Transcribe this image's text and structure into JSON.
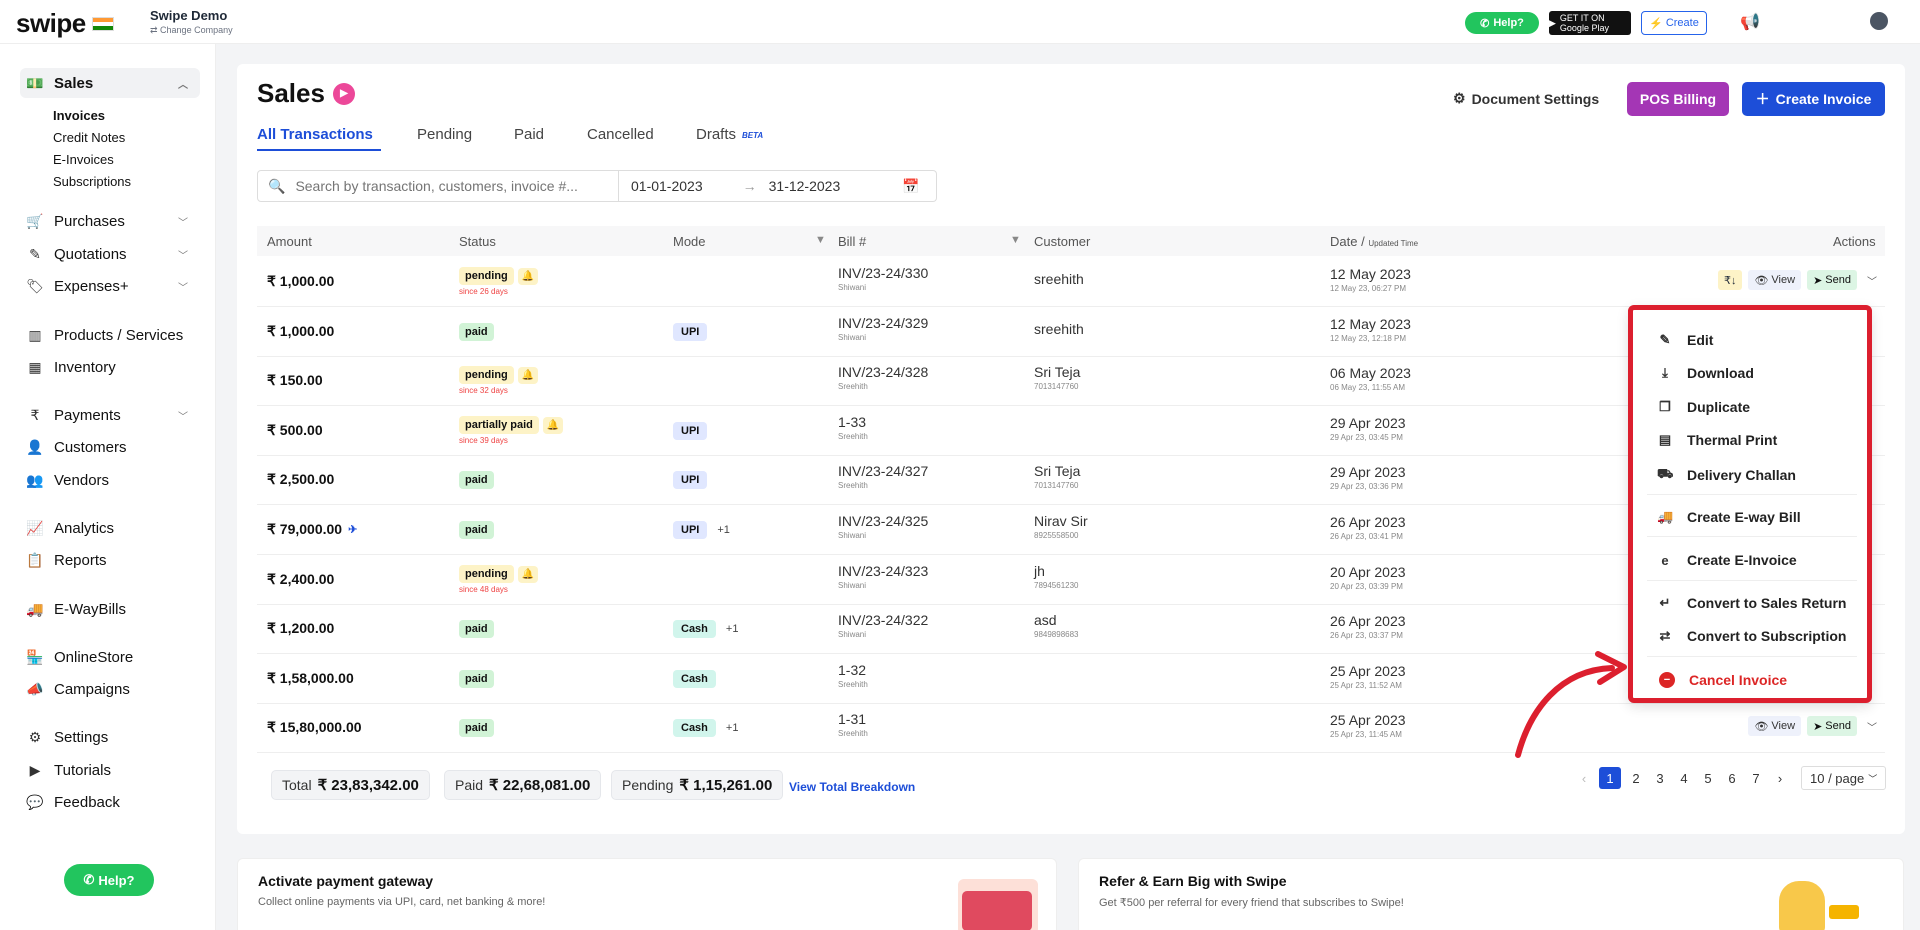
{
  "topbar": {
    "logo": "swipe",
    "company_name": "Swipe Demo",
    "change_company": "⇄ Change Company",
    "help": "Help?",
    "google_play": "GET IT ON Google Play",
    "create": "Create"
  },
  "sidebar": {
    "items": [
      {
        "label": "Sales",
        "icon": "money-icon"
      },
      {
        "label": "Purchases",
        "icon": "cart-icon"
      },
      {
        "label": "Quotations",
        "icon": "pen-icon"
      },
      {
        "label": "Expenses+",
        "icon": "tag-icon"
      },
      {
        "label": "Products / Services",
        "icon": "barcode-icon"
      },
      {
        "label": "Inventory",
        "icon": "warehouse-icon"
      },
      {
        "label": "Payments",
        "icon": "rupee-icon"
      },
      {
        "label": "Customers",
        "icon": "user-icon"
      },
      {
        "label": "Vendors",
        "icon": "users-icon"
      },
      {
        "label": "Analytics",
        "icon": "chart-icon"
      },
      {
        "label": "Reports",
        "icon": "report-icon"
      },
      {
        "label": "E-WayBills",
        "icon": "truck-icon"
      },
      {
        "label": "OnlineStore",
        "icon": "store-icon"
      },
      {
        "label": "Campaigns",
        "icon": "megaphone-icon"
      },
      {
        "label": "Settings",
        "icon": "gear-icon"
      },
      {
        "label": "Tutorials",
        "icon": "youtube-icon"
      },
      {
        "label": "Feedback",
        "icon": "feedback-icon"
      }
    ],
    "sales_sub": [
      "Invoices",
      "Credit Notes",
      "E-Invoices",
      "Subscriptions"
    ],
    "help": "Help?"
  },
  "page": {
    "title": "Sales",
    "document_settings": "Document Settings",
    "pos_billing": "POS Billing",
    "create_invoice": "Create Invoice",
    "tabs": [
      "All Transactions",
      "Pending",
      "Paid",
      "Cancelled",
      "Drafts"
    ],
    "beta": "BETA",
    "search_placeholder": "Search by transaction, customers, invoice #...",
    "date_from": "01-01-2023",
    "date_to": "31-12-2023"
  },
  "table": {
    "headers": {
      "amount": "Amount",
      "status": "Status",
      "mode": "Mode",
      "bill": "Bill #",
      "customer": "Customer",
      "date": "Date /",
      "date_sub": "Updated Time",
      "actions": "Actions"
    },
    "rows": [
      {
        "amount": "₹ 1,000.00",
        "status": "pending",
        "since": "since 26 days",
        "mode": "",
        "mode_extra": "",
        "bill": "INV/23-24/330",
        "bill_by": "Shiwani",
        "customer": "sreehith",
        "phone": "",
        "date": "12 May 2023",
        "updated": "12 May 23, 06:27 PM"
      },
      {
        "amount": "₹ 1,000.00",
        "status": "paid",
        "since": "",
        "mode": "UPI",
        "mode_extra": "",
        "bill": "INV/23-24/329",
        "bill_by": "Shiwani",
        "customer": "sreehith",
        "phone": "",
        "date": "12 May 2023",
        "updated": "12 May 23, 12:18 PM"
      },
      {
        "amount": "₹ 150.00",
        "status": "pending",
        "since": "since 32 days",
        "mode": "",
        "mode_extra": "",
        "bill": "INV/23-24/328",
        "bill_by": "Sreehith",
        "customer": "Sri Teja",
        "phone": "7013147760",
        "date": "06 May 2023",
        "updated": "06 May 23, 11:55 AM"
      },
      {
        "amount": "₹ 500.00",
        "status": "partially paid",
        "since": "since 39 days",
        "mode": "UPI",
        "mode_extra": "",
        "bill": "1-33",
        "bill_by": "Sreehith",
        "customer": "",
        "phone": "",
        "date": "29 Apr 2023",
        "updated": "29 Apr 23, 03:45 PM"
      },
      {
        "amount": "₹ 2,500.00",
        "status": "paid",
        "since": "",
        "mode": "UPI",
        "mode_extra": "",
        "bill": "INV/23-24/327",
        "bill_by": "Sreehith",
        "customer": "Sri Teja",
        "phone": "7013147760",
        "date": "29 Apr 2023",
        "updated": "29 Apr 23, 03:36 PM"
      },
      {
        "amount": "₹ 79,000.00",
        "status": "paid",
        "since": "",
        "mode": "UPI",
        "mode_extra": "+1",
        "bill": "INV/23-24/325",
        "bill_by": "Shiwani",
        "customer": "Nirav Sir",
        "phone": "8925558500",
        "date": "26 Apr 2023",
        "updated": "26 Apr 23, 03:41 PM"
      },
      {
        "amount": "₹ 2,400.00",
        "status": "pending",
        "since": "since 48 days",
        "mode": "",
        "mode_extra": "",
        "bill": "INV/23-24/323",
        "bill_by": "Shiwani",
        "customer": "jh",
        "phone": "7894561230",
        "date": "20 Apr 2023",
        "updated": "20 Apr 23, 03:39 PM"
      },
      {
        "amount": "₹ 1,200.00",
        "status": "paid",
        "since": "",
        "mode": "Cash",
        "mode_extra": "+1",
        "bill": "INV/23-24/322",
        "bill_by": "Shiwani",
        "customer": "asd",
        "phone": "9849898683",
        "date": "26 Apr 2023",
        "updated": "26 Apr 23, 03:37 PM"
      },
      {
        "amount": "₹ 1,58,000.00",
        "status": "paid",
        "since": "",
        "mode": "Cash",
        "mode_extra": "",
        "bill": "1-32",
        "bill_by": "Sreehith",
        "customer": "",
        "phone": "",
        "date": "25 Apr 2023",
        "updated": "25 Apr 23, 11:52 AM"
      },
      {
        "amount": "₹ 15,80,000.00",
        "status": "paid",
        "since": "",
        "mode": "Cash",
        "mode_extra": "+1",
        "bill": "1-31",
        "bill_by": "Sreehith",
        "customer": "",
        "phone": "",
        "date": "25 Apr 2023",
        "updated": "25 Apr 23, 11:45 AM"
      }
    ],
    "actions": {
      "view": "View",
      "send": "Send",
      "rupee": "₹↓"
    }
  },
  "totals": {
    "total_label": "Total",
    "total": "₹ 23,83,342.00",
    "paid_label": "Paid",
    "paid": "₹ 22,68,081.00",
    "pending_label": "Pending",
    "pending": "₹ 1,15,261.00",
    "breakdown": "View Total Breakdown"
  },
  "pagination": {
    "pages": [
      "1",
      "2",
      "3",
      "4",
      "5",
      "6",
      "7"
    ],
    "current": "1",
    "page_size": "10 / page"
  },
  "dropdown": {
    "items": [
      "Edit",
      "Download",
      "Duplicate",
      "Thermal Print",
      "Delivery Challan",
      "Create E-way Bill",
      "Create E-Invoice",
      "Convert to Sales Return",
      "Convert to Subscription"
    ],
    "cancel": "Cancel Invoice"
  },
  "promos": [
    {
      "title": "Activate payment gateway",
      "desc": "Collect online payments via UPI, card, net banking & more!"
    },
    {
      "title": "Refer & Earn Big with Swipe",
      "desc": "Get ₹500 per referral for every friend that subscribes to Swipe!"
    }
  ],
  "colors": {
    "accent": "#1d4ed8",
    "pos": "#a436b5",
    "highlight": "#dc1f2e",
    "whatsapp": "#22c55e"
  }
}
